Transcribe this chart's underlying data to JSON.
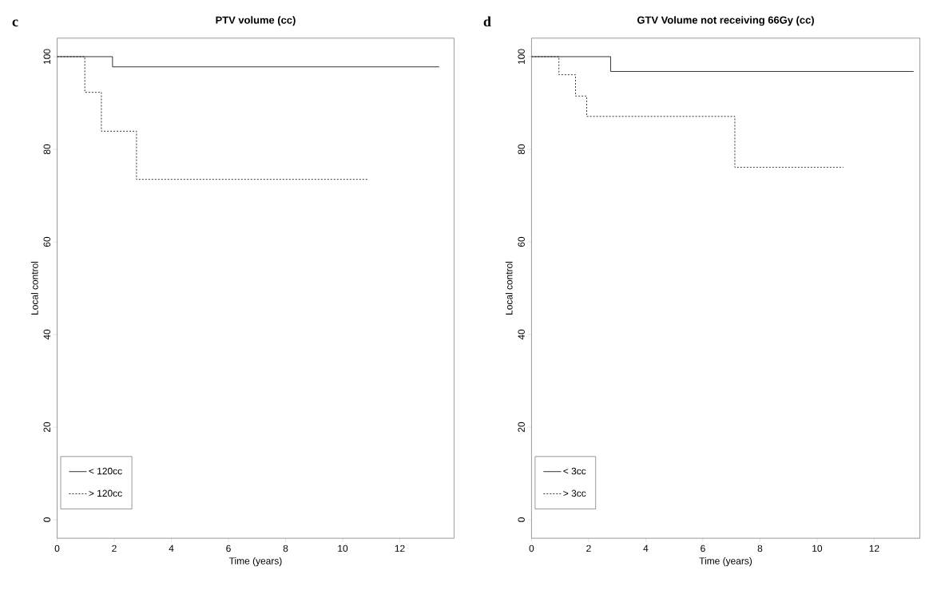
{
  "chart_data": [
    {
      "type": "step",
      "title": "PTV volume (cc)",
      "xlabel": "Time (years)",
      "ylabel": "Local control",
      "annotations": [
        "c"
      ],
      "xlim": [
        0,
        13.9
      ],
      "ylim": [
        -4,
        104
      ],
      "xticks": [
        0,
        2,
        4,
        6,
        8,
        10,
        12
      ],
      "yticks": [
        0,
        20,
        40,
        60,
        80,
        100
      ],
      "legend": "bottom left",
      "grid": false,
      "marker": "none",
      "series": [
        {
          "name": "< 120cc",
          "color": "#000000",
          "line_style": "solid",
          "x": [
            0,
            1.94,
            13.38
          ],
          "values": [
            100,
            97.8,
            97.8
          ]
        },
        {
          "name": "> 120cc",
          "color": "#000000",
          "line_style": "dotted",
          "x": [
            0,
            0.97,
            1.55,
            2.78,
            10.91
          ],
          "values": [
            100,
            92.3,
            83.9,
            73.5,
            73.5
          ]
        }
      ]
    },
    {
      "type": "step",
      "title": "GTV Volume not receiving 66Gy (cc)",
      "xlabel": "Time (years)",
      "ylabel": "Local control",
      "annotations": [
        "d"
      ],
      "xlim": [
        0,
        13.6
      ],
      "ylim": [
        -4,
        104
      ],
      "xticks": [
        0,
        2,
        4,
        6,
        8,
        10,
        12
      ],
      "yticks": [
        0,
        20,
        40,
        60,
        80,
        100
      ],
      "legend": "bottom left",
      "grid": false,
      "marker": "none",
      "series": [
        {
          "name": "< 3cc",
          "color": "#000000",
          "line_style": "solid",
          "x": [
            0,
            2.77,
            13.38
          ],
          "values": [
            100,
            96.8,
            96.8
          ]
        },
        {
          "name": "> 3cc",
          "color": "#000000",
          "line_style": "dotted",
          "x": [
            0,
            0.96,
            1.54,
            1.93,
            7.12,
            10.92
          ],
          "values": [
            100,
            96.1,
            91.5,
            87.1,
            76.1,
            76.1
          ]
        }
      ]
    }
  ]
}
